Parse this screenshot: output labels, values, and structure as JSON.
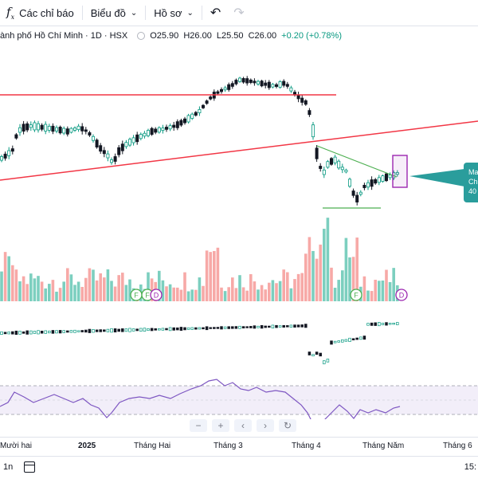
{
  "toolbar": {
    "indicators_label": "Các chỉ báo",
    "chart_label": "Biểu đồ",
    "profile_label": "Hồ sơ",
    "fx_icon": "fx-icon",
    "undo_icon": "undo-icon",
    "redo_icon": "redo-icon"
  },
  "legend": {
    "symbol": "ành phố Hồ Chí Minh · 1D · HSX",
    "open": "O25.90",
    "high": "H26.00",
    "low": "L25.50",
    "close": "C26.00",
    "change": "+0.20 (+0.78%)",
    "change_color": "#089981"
  },
  "callout": {
    "line1": "Ma",
    "line2": "Ch",
    "line3": "40",
    "color": "#2a9d9c"
  },
  "colors": {
    "up": "#089981",
    "down": "#131722",
    "vol_up": "#7ccfbf",
    "vol_down": "#f7a9a7",
    "resistance": "#f23645",
    "trend": "#4caf50",
    "rsi": "#7e57c2",
    "rsi_band": "rgba(126,87,194,0.10)",
    "highlight_box": "#9c27b0"
  },
  "markers": [
    {
      "label": "F",
      "kind": "dividend"
    },
    {
      "label": "F",
      "kind": "dividend"
    },
    {
      "label": "D",
      "kind": "dividend"
    },
    {
      "label": "F",
      "kind": "dividend"
    },
    {
      "label": "D",
      "kind": "dividend"
    }
  ],
  "nav_controls": [
    "−",
    "+",
    "‹",
    "›",
    "↻"
  ],
  "time_axis": [
    "Mười hai",
    "2025",
    "Tháng Hai",
    "Tháng 3",
    "Tháng 4",
    "Tháng Năm",
    "Tháng 6"
  ],
  "bottom": {
    "period": "1n",
    "clock": "15:"
  }
}
